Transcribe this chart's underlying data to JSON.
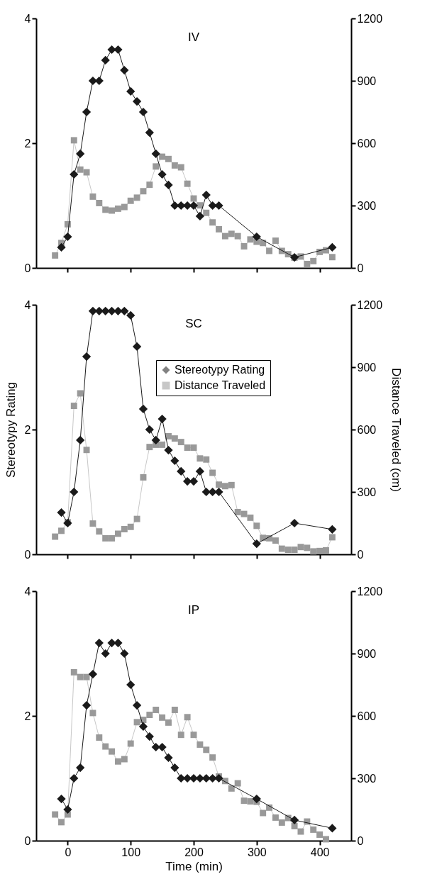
{
  "chart_data": [
    {
      "type": "line",
      "title": "IV",
      "xlim": [
        -50,
        450
      ],
      "xticks": [
        0,
        100,
        200,
        300,
        400
      ],
      "ylim": [
        0,
        4
      ],
      "yticks": [
        0,
        2,
        4
      ],
      "y2lim": [
        0,
        1200
      ],
      "y2ticks": [
        0,
        300,
        600,
        900,
        1200
      ],
      "tick_labels": "y",
      "grid": false,
      "legend": false,
      "series": [
        {
          "color": "#1a1a1a",
          "marker": "diamond",
          "x": [
            -10,
            0,
            10,
            20,
            30,
            40,
            50,
            60,
            70,
            80,
            90,
            100,
            110,
            120,
            130,
            140,
            150,
            160,
            170,
            180,
            190,
            200,
            210,
            220,
            230,
            240,
            300,
            360,
            420
          ],
          "values": [
            0.33,
            0.5,
            1.5,
            1.83,
            2.5,
            3,
            3,
            3.33,
            3.5,
            3.5,
            3.17,
            2.83,
            2.67,
            2.5,
            2.17,
            1.83,
            1.5,
            1.33,
            1,
            1,
            1,
            1,
            0.83,
            1.17,
            1,
            1,
            0.5,
            0.17,
            0.33
          ]
        },
        {
          "color": "#999999",
          "marker": "square",
          "axis": "y2",
          "x": [
            -20,
            -10,
            0,
            10,
            20,
            30,
            40,
            50,
            60,
            70,
            80,
            90,
            100,
            110,
            120,
            130,
            140,
            150,
            160,
            170,
            180,
            190,
            200,
            210,
            220,
            230,
            240,
            250,
            260,
            270,
            280,
            290,
            300,
            310,
            320,
            330,
            340,
            350,
            360,
            370,
            380,
            390,
            400,
            410,
            420
          ],
          "values": [
            60,
            120,
            210,
            614,
            473,
            460,
            343,
            312,
            280,
            276,
            285,
            293,
            323,
            338,
            369,
            400,
            488,
            535,
            524,
            493,
            484,
            405,
            334,
            301,
            265,
            219,
            186,
            153,
            164,
            153,
            104,
            137,
            126,
            120,
            82,
            131,
            82,
            66,
            49,
            55,
            19,
            33,
            77,
            85,
            52
          ]
        }
      ]
    },
    {
      "type": "line",
      "title": "SC",
      "ylabel": "Stereotypy Rating",
      "y2label": "Distance Traveled (cm)",
      "xlim": [
        -50,
        450
      ],
      "xticks": [
        0,
        100,
        200,
        300,
        400
      ],
      "ylim": [
        0,
        4
      ],
      "yticks": [
        0,
        2,
        4
      ],
      "y2lim": [
        0,
        1200
      ],
      "y2ticks": [
        0,
        300,
        600,
        900,
        1200
      ],
      "tick_labels": "y",
      "grid": false,
      "legend": "top right",
      "series": [
        {
          "name": "Stereotypy Rating",
          "color": "#1a1a1a",
          "marker": "diamond",
          "x": [
            -10,
            0,
            10,
            20,
            30,
            40,
            50,
            60,
            70,
            80,
            90,
            100,
            110,
            120,
            130,
            140,
            150,
            160,
            170,
            180,
            190,
            200,
            210,
            220,
            230,
            240,
            300,
            360,
            420
          ],
          "values": [
            0.67,
            0.5,
            1,
            1.83,
            3.17,
            3.9,
            3.9,
            3.9,
            3.9,
            3.9,
            3.9,
            3.83,
            3.33,
            2.33,
            2,
            1.83,
            2.17,
            1.67,
            1.5,
            1.33,
            1.17,
            1.17,
            1.33,
            1,
            1,
            1,
            0.17,
            0.5,
            0.4
          ]
        },
        {
          "name": "Distance Traveled",
          "color": "#999999",
          "marker": "square",
          "axis": "y2",
          "x": [
            -20,
            -10,
            0,
            10,
            20,
            30,
            40,
            50,
            60,
            70,
            80,
            90,
            100,
            110,
            120,
            130,
            140,
            150,
            160,
            170,
            180,
            190,
            200,
            210,
            220,
            230,
            240,
            250,
            260,
            270,
            280,
            290,
            300,
            310,
            320,
            330,
            340,
            350,
            360,
            370,
            380,
            390,
            400,
            410,
            420
          ],
          "values": [
            85,
            113,
            154,
            714,
            774,
            502,
            148,
            110,
            77,
            77,
            99,
            121,
            132,
            170,
            370,
            516,
            527,
            527,
            568,
            557,
            540,
            513,
            513,
            461,
            456,
            392,
            335,
            328,
            333,
            203,
            194,
            176,
            137,
            79,
            77,
            66,
            27,
            22,
            22,
            35,
            31,
            14,
            16,
            19,
            82
          ]
        }
      ]
    },
    {
      "type": "line",
      "title": "IP",
      "xlabel": "Time (min)",
      "xlim": [
        -50,
        450
      ],
      "xticks": [
        0,
        100,
        200,
        300,
        400
      ],
      "ylim": [
        0,
        4
      ],
      "yticks": [
        0,
        2,
        4
      ],
      "y2lim": [
        0,
        1200
      ],
      "y2ticks": [
        0,
        300,
        600,
        900,
        1200
      ],
      "grid": false,
      "legend": false,
      "series": [
        {
          "color": "#1a1a1a",
          "marker": "diamond",
          "x": [
            -10,
            0,
            10,
            20,
            30,
            40,
            50,
            60,
            70,
            80,
            90,
            100,
            110,
            120,
            130,
            140,
            150,
            160,
            170,
            180,
            190,
            200,
            210,
            220,
            230,
            240,
            300,
            360,
            420
          ],
          "values": [
            0.67,
            0.5,
            1,
            1.17,
            2.17,
            2.67,
            3.17,
            3,
            3.17,
            3.17,
            3,
            2.5,
            2.17,
            1.83,
            1.67,
            1.5,
            1.5,
            1.33,
            1.17,
            1,
            1,
            1,
            1,
            1,
            1,
            1,
            0.67,
            0.33,
            0.2
          ]
        },
        {
          "color": "#999999",
          "marker": "square",
          "axis": "y2",
          "x": [
            -20,
            -10,
            0,
            10,
            20,
            30,
            40,
            50,
            60,
            70,
            80,
            90,
            100,
            110,
            120,
            130,
            140,
            150,
            160,
            170,
            180,
            190,
            200,
            210,
            220,
            230,
            240,
            250,
            260,
            270,
            280,
            290,
            300,
            310,
            320,
            330,
            340,
            350,
            360,
            370,
            380,
            390,
            400,
            410
          ],
          "values": [
            126,
            89,
            126,
            810,
            787,
            787,
            614,
            496,
            453,
            429,
            381,
            392,
            467,
            570,
            581,
            605,
            629,
            592,
            568,
            629,
            509,
            594,
            509,
            462,
            437,
            400,
            309,
            287,
            251,
            276,
            192,
            189,
            187,
            133,
            159,
            111,
            87,
            109,
            70,
            44,
            92,
            53,
            29,
            7
          ]
        }
      ]
    }
  ]
}
